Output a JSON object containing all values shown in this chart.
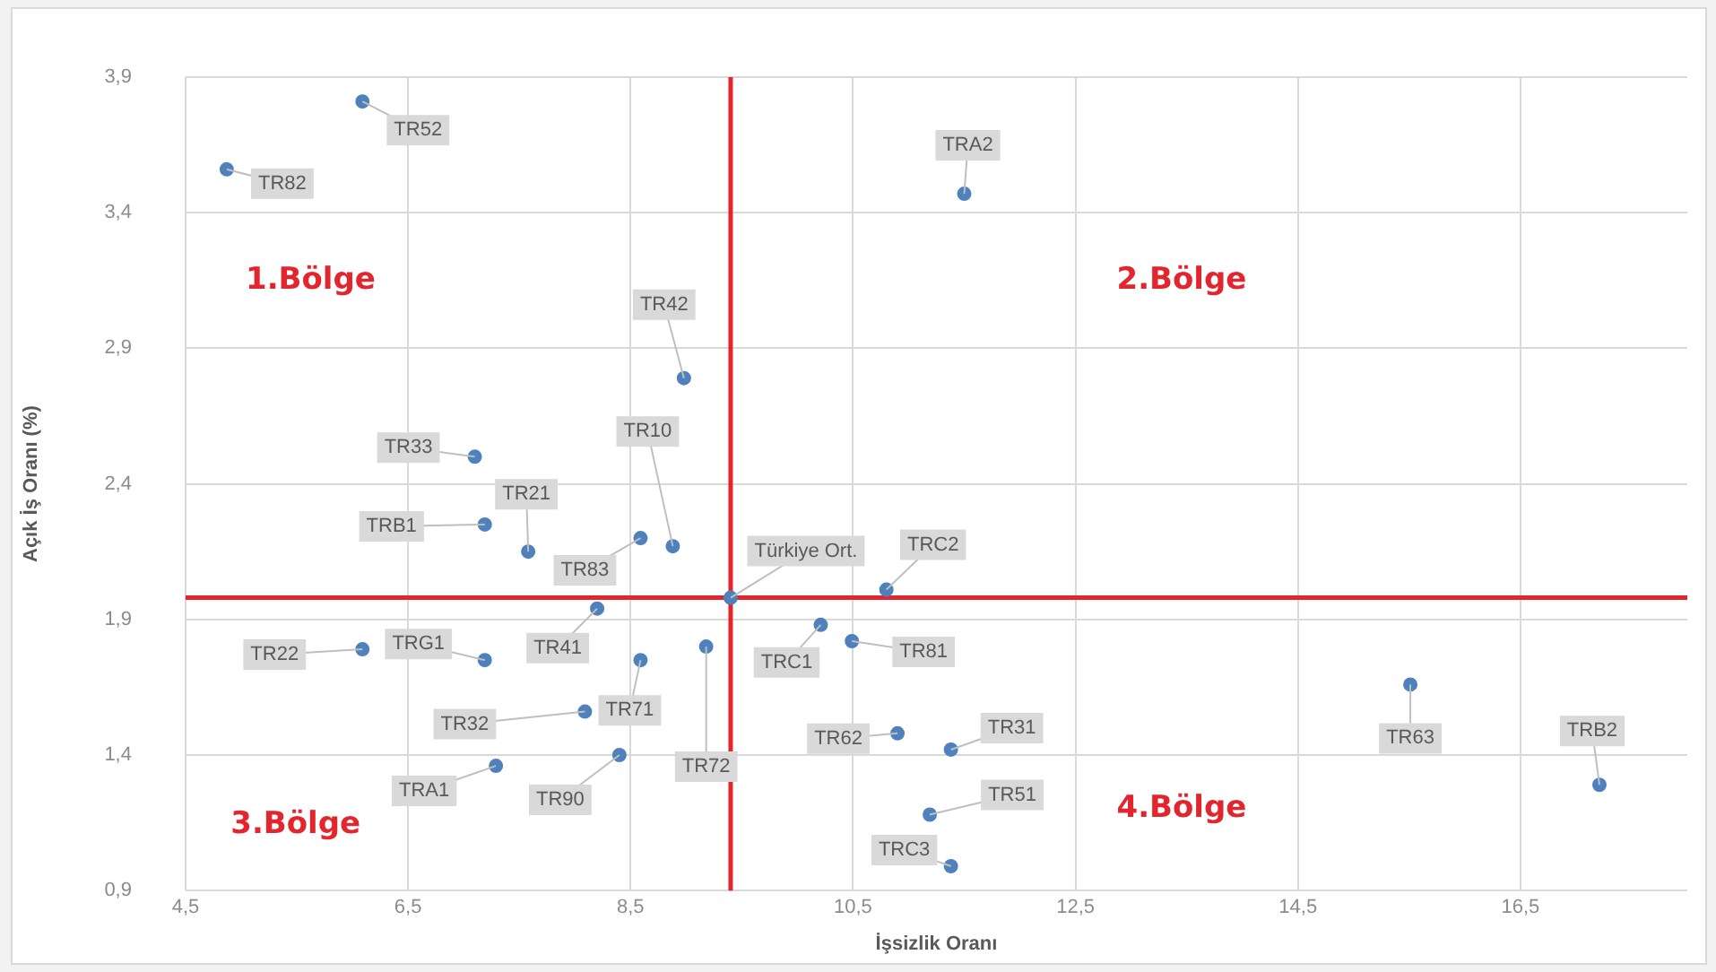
{
  "chart_data": {
    "type": "scatter",
    "xlabel": "İşsizlik Oranı",
    "ylabel": "Açık İş Oranı (%)",
    "x": [
      6.09,
      4.87,
      11.5,
      8.98,
      7.1,
      7.19,
      7.58,
      8.59,
      8.88,
      9.4,
      8.2,
      6.09,
      7.19,
      8.59,
      9.18,
      8.09,
      7.29,
      8.4,
      10.21,
      10.49,
      10.8,
      10.9,
      11.38,
      11.19,
      11.38,
      15.51,
      17.21
    ],
    "values": [
      3.81,
      3.56,
      3.47,
      2.79,
      2.5,
      2.25,
      2.15,
      2.2,
      2.17,
      1.98,
      1.94,
      1.79,
      1.75,
      1.75,
      1.8,
      1.56,
      1.36,
      1.4,
      1.88,
      1.82,
      2.01,
      1.48,
      1.42,
      1.18,
      0.99,
      1.66,
      1.29
    ],
    "value_labels": [
      "TR52",
      "TR82",
      "TRA2",
      "TR42",
      "TR33",
      "TRB1",
      "TR21",
      "TR83",
      "TR10",
      "Türkiye Ort.",
      "TR41",
      "TR22",
      "TRG1",
      "TR71",
      "TR72",
      "TR32",
      "TRA1",
      "TR90",
      "TRC1",
      "TR81",
      "TRC2",
      "TR62",
      "TR31",
      "TR51",
      "TRC3",
      "TR63",
      "TRB2"
    ],
    "color": "#4f81bd",
    "marker": "circle",
    "grid": true,
    "legend": false,
    "xlim": [
      4.5,
      18
    ],
    "xticks": [
      {
        "value": 4.5,
        "label": "4,5"
      },
      {
        "value": 6.5,
        "label": "6,5"
      },
      {
        "value": 8.5,
        "label": "8,5"
      },
      {
        "value": 10.5,
        "label": "10,5"
      },
      {
        "value": 12.5,
        "label": "12,5"
      },
      {
        "value": 14.5,
        "label": "14,5"
      },
      {
        "value": 16.5,
        "label": "16,5"
      }
    ],
    "ylim": [
      0.9,
      3.9
    ],
    "yticks": [
      {
        "value": 0.9,
        "label": "0,9"
      },
      {
        "value": 1.4,
        "label": "1,4"
      },
      {
        "value": 1.9,
        "label": "1,9"
      },
      {
        "value": 2.4,
        "label": "2,4"
      },
      {
        "value": 2.9,
        "label": "2,9"
      },
      {
        "value": 3.4,
        "label": "3,4"
      },
      {
        "value": 3.9,
        "label": "3,9"
      }
    ],
    "ref_lines": [
      {
        "axis": "x",
        "value": 9.4,
        "color": "#e3262e"
      },
      {
        "axis": "y",
        "value": 1.98,
        "color": "#e3262e"
      }
    ],
    "annotations": [
      "1.Bölge",
      "2.Bölge",
      "3.Bölge",
      "4.Bölge"
    ]
  }
}
